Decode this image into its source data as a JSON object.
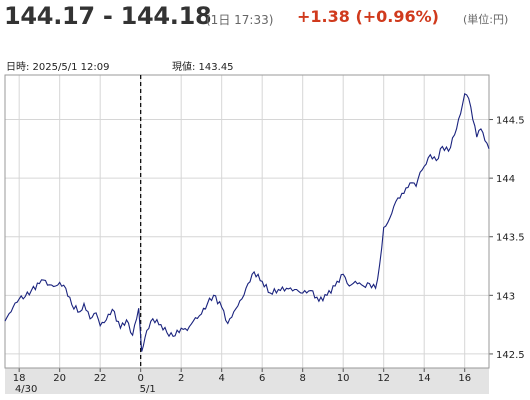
{
  "quote": {
    "bid_ask": "144.17 - 144.18",
    "time": "(1日 17:33)",
    "change": "+1.38 (+0.96%)",
    "unit": "(単位:円)",
    "change_color": "#d03a1d"
  },
  "cursor_info": {
    "datetime_label": "日時: 2025/5/1 12:09",
    "price_label": "現値: 143.45"
  },
  "chart_data": {
    "type": "line",
    "title": "",
    "xlabel": "",
    "ylabel": "",
    "line_color": "#1a237e",
    "ylim": [
      142.38,
      144.88
    ],
    "xlim": [
      17.3,
      41.2
    ],
    "y_ticks": [
      142.5,
      143,
      143.5,
      144,
      144.5
    ],
    "y_tick_labels": [
      "142.5",
      "143",
      "143.5",
      "144",
      "144.5"
    ],
    "x_ticks": [
      18,
      20,
      22,
      24,
      26,
      28,
      30,
      32,
      34,
      36,
      38,
      40
    ],
    "x_tick_labels": [
      "18",
      "20",
      "22",
      "0",
      "2",
      "4",
      "6",
      "8",
      "10",
      "12",
      "14",
      "16"
    ],
    "date_labels": [
      {
        "x": 18,
        "label": "4/30"
      },
      {
        "x": 24,
        "label": "5/1"
      }
    ],
    "day_divider_x": 24,
    "grid": true,
    "series": [
      {
        "x": [
          17.3,
          17.7,
          18.0,
          18.3,
          18.6,
          19.0,
          19.2,
          19.5,
          19.8,
          20.0,
          20.3,
          20.6,
          21.0,
          21.2,
          21.5,
          21.8,
          22.0,
          22.3,
          22.6,
          23.0,
          23.3,
          23.6,
          23.9,
          24.05,
          24.3,
          24.6,
          25.0,
          25.3,
          25.6,
          26.0,
          26.3,
          26.6,
          27.0,
          27.3,
          27.6,
          28.0,
          28.3,
          28.6,
          29.0,
          29.3,
          29.6,
          30.0,
          30.4,
          30.8,
          31.2,
          31.6,
          32.0,
          32.4,
          32.8,
          33.2,
          33.6,
          34.0,
          34.3,
          34.6,
          35.0,
          35.3,
          35.6,
          35.8,
          36.0,
          36.2,
          36.4,
          36.6,
          36.8,
          37.0,
          37.2,
          37.4,
          37.6,
          37.8,
          38.0,
          38.3,
          38.6,
          38.9,
          39.2,
          39.5,
          39.8,
          40.0,
          40.2,
          40.4,
          40.6,
          40.8,
          41.0,
          41.2
        ],
        "y": [
          142.78,
          142.9,
          142.97,
          142.99,
          143.04,
          143.1,
          143.13,
          143.09,
          143.08,
          143.11,
          143.06,
          142.92,
          142.86,
          142.93,
          142.8,
          142.85,
          142.74,
          142.79,
          142.88,
          142.72,
          142.79,
          142.66,
          142.89,
          142.52,
          142.7,
          142.8,
          142.75,
          142.68,
          142.65,
          142.72,
          142.7,
          142.78,
          142.84,
          142.93,
          143.0,
          142.9,
          142.76,
          142.86,
          142.97,
          143.1,
          143.2,
          143.12,
          143.02,
          143.05,
          143.06,
          143.05,
          143.02,
          143.04,
          142.95,
          143.0,
          143.08,
          143.18,
          143.08,
          143.12,
          143.08,
          143.1,
          143.06,
          143.26,
          143.58,
          143.62,
          143.7,
          143.8,
          143.83,
          143.87,
          143.92,
          143.96,
          143.93,
          144.05,
          144.1,
          144.2,
          144.15,
          144.27,
          144.23,
          144.37,
          144.55,
          144.72,
          144.68,
          144.5,
          144.35,
          144.42,
          144.32,
          144.25
        ]
      }
    ]
  }
}
